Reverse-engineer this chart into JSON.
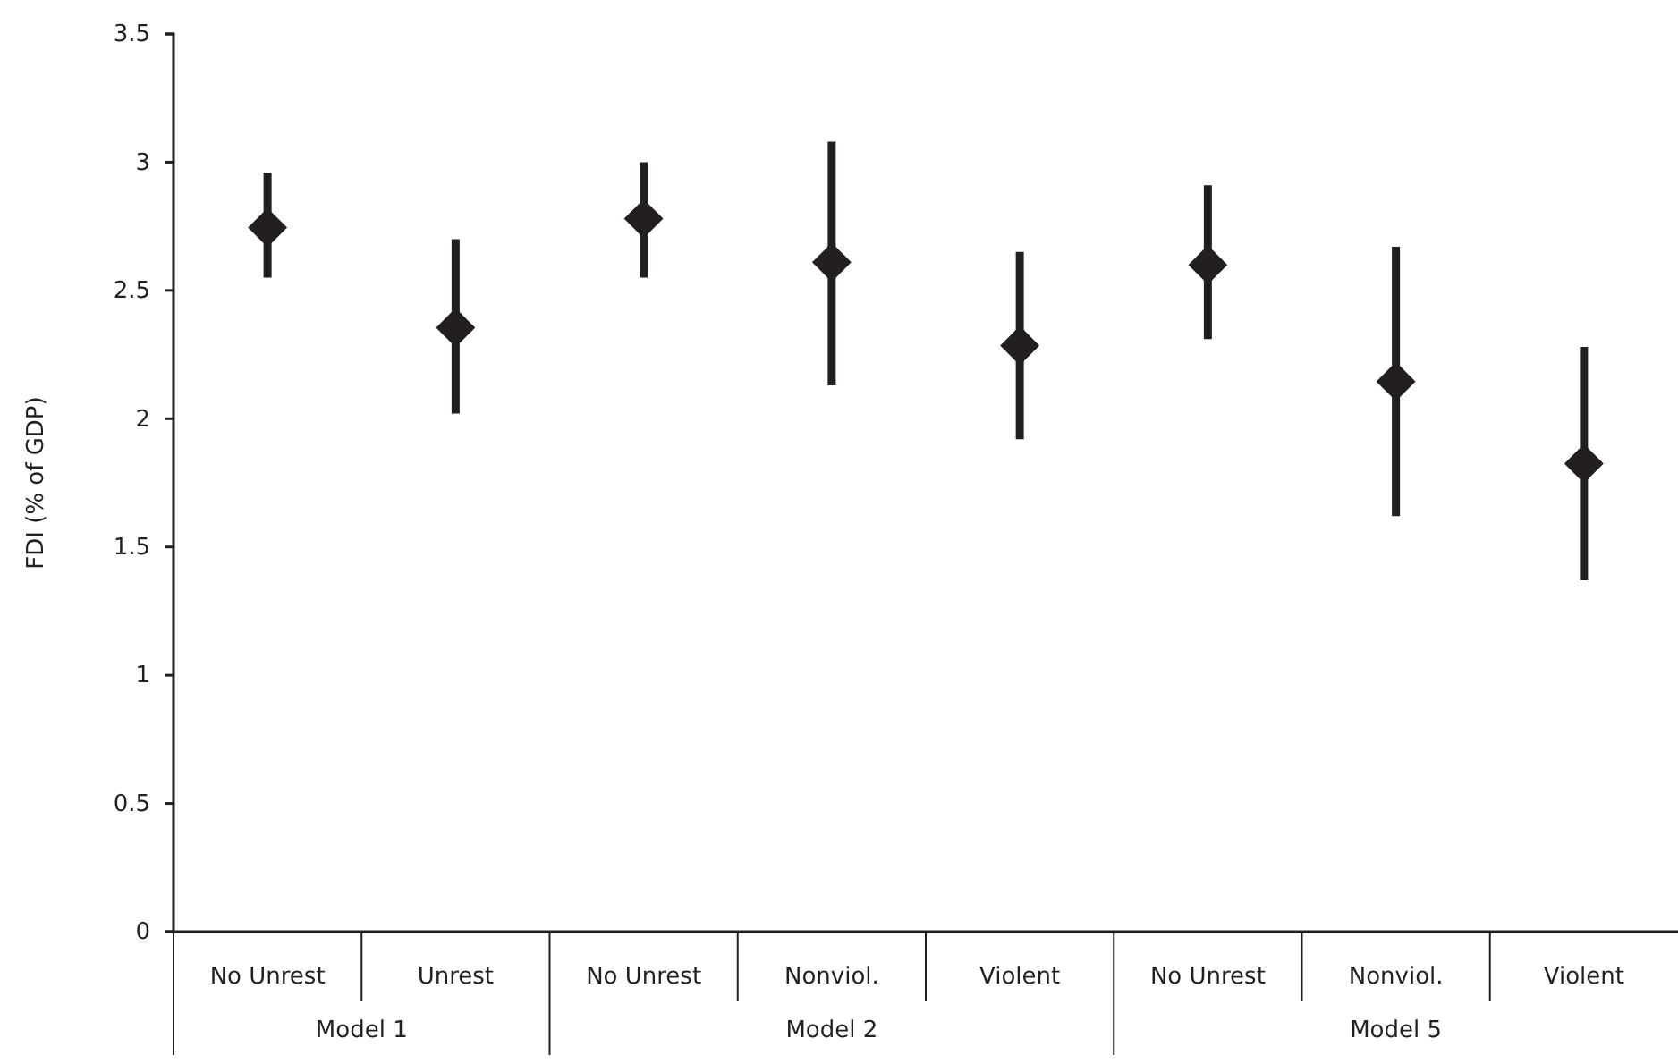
{
  "chart_data": {
    "type": "scatter",
    "ylabel": "FDI (% of GDP)",
    "categories": [
      "No Unrest",
      "Unrest",
      "No Unrest",
      "Nonviol.",
      "Violent",
      "No Unrest",
      "Nonviol.",
      "Violent"
    ],
    "values": [
      2.745,
      2.355,
      2.78,
      2.61,
      2.285,
      2.6,
      2.145,
      1.825
    ],
    "errors": [
      [
        2.55,
        2.96
      ],
      [
        2.02,
        2.7
      ],
      [
        2.55,
        3.0
      ],
      [
        2.13,
        3.08
      ],
      [
        1.92,
        2.65
      ],
      [
        2.31,
        2.91
      ],
      [
        1.62,
        2.67
      ],
      [
        1.37,
        2.28
      ]
    ],
    "color": "#231f20",
    "marker": "diamond",
    "ylim": [
      0,
      3.5
    ],
    "yticks": [
      0,
      0.5,
      1,
      1.5,
      2,
      2.5,
      3,
      3.5
    ],
    "annotations": [
      "Model 1",
      "Model 2",
      "Model 5"
    ]
  }
}
